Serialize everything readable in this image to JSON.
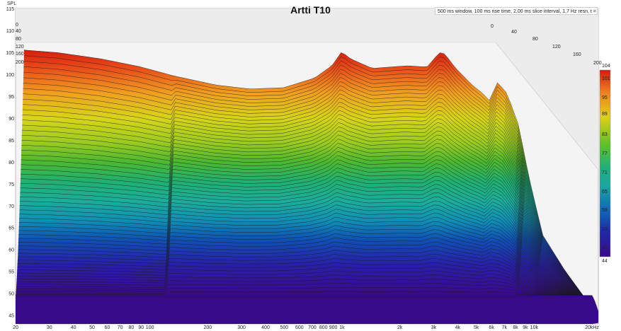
{
  "chart_data": {
    "type": "waterfall",
    "title": "Artti T10",
    "info": "500 ms window, 100 ms rise time, 2,00 ms slice interval, 1,7 Hz resn, t = 200 ms",
    "ylabel": "SPL",
    "ylim": [
      43,
      115
    ],
    "y_ticks": [
      45,
      50,
      55,
      60,
      65,
      70,
      75,
      80,
      85,
      90,
      95,
      100,
      105,
      110,
      115
    ],
    "x_scale": "log",
    "x_ticks": [
      {
        "v": 20,
        "label": "20"
      },
      {
        "v": 30,
        "label": "30"
      },
      {
        "v": 40,
        "label": "40"
      },
      {
        "v": 50,
        "label": "50"
      },
      {
        "v": 60,
        "label": "60"
      },
      {
        "v": 70,
        "label": "70"
      },
      {
        "v": 80,
        "label": "80"
      },
      {
        "v": 90,
        "label": "90"
      },
      {
        "v": 100,
        "label": "100"
      },
      {
        "v": 200,
        "label": "200"
      },
      {
        "v": 300,
        "label": "300"
      },
      {
        "v": 400,
        "label": "400"
      },
      {
        "v": 500,
        "label": "500"
      },
      {
        "v": 600,
        "label": "600"
      },
      {
        "v": 700,
        "label": "700"
      },
      {
        "v": 800,
        "label": "800"
      },
      {
        "v": 900,
        "label": "900"
      },
      {
        "v": 1000,
        "label": "1k"
      },
      {
        "v": 2000,
        "label": "2k"
      },
      {
        "v": 3000,
        "label": "3k"
      },
      {
        "v": 4000,
        "label": "4k"
      },
      {
        "v": 5000,
        "label": "5k"
      },
      {
        "v": 6000,
        "label": "6k"
      },
      {
        "v": 7000,
        "label": "7k"
      },
      {
        "v": 8000,
        "label": "8k"
      },
      {
        "v": 9000,
        "label": "9k"
      },
      {
        "v": 10000,
        "label": "10k"
      },
      {
        "v": 20000,
        "label": "20kHz"
      }
    ],
    "time_ticks_ms": [
      "0",
      "40",
      "80",
      "120",
      "160",
      "200"
    ],
    "time_ticks_left_ms": [
      "0",
      "40",
      "80",
      "120",
      "160",
      "200"
    ],
    "colorbar": {
      "min": 44,
      "max": 104,
      "ticks": [
        "104",
        "101",
        "95",
        "89",
        "83",
        "77",
        "71",
        "65",
        "59",
        "53",
        "47",
        "44"
      ]
    },
    "first_slice": {
      "freq_hz": [
        20,
        30,
        50,
        80,
        120,
        200,
        300,
        450,
        650,
        800,
        900,
        1000,
        1300,
        1700,
        2000,
        2500,
        2900,
        3100,
        3500,
        4300,
        4900,
        5300,
        5800,
        6500,
        7500,
        8500,
        10000,
        13000,
        17000,
        20000
      ],
      "spl_db": [
        105.2,
        104.6,
        103.2,
        101.4,
        99.3,
        97.2,
        96.3,
        96.6,
        98.8,
        101.6,
        104.8,
        103.2,
        101.0,
        101.4,
        101.6,
        101.3,
        104.6,
        104.3,
        101.2,
        97.2,
        95.2,
        93.6,
        97.8,
        95.4,
        88.0,
        76.0,
        63.0,
        55.0,
        48.0,
        44.0
      ]
    },
    "floor_db": 49.5,
    "slice_count": 100,
    "slice_interval_ms": 2
  }
}
